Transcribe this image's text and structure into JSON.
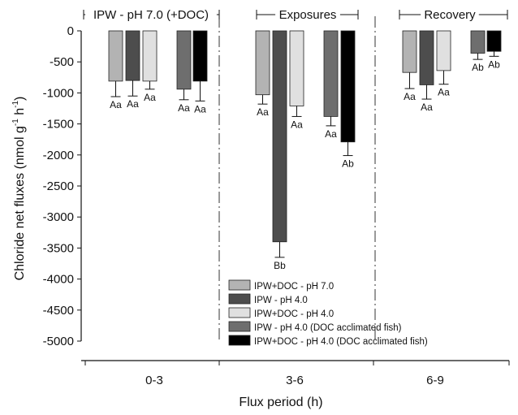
{
  "chart_data": {
    "type": "bar",
    "ylabel": "Chloride net fluxes (nmol g-1 h-1)",
    "ylabel_parts": {
      "main": "Chloride net fluxes (nmol g",
      "sup1": "-1",
      "mid": " h",
      "sup2": "-1",
      "end": ")"
    },
    "xlabel": "Flux period (h)",
    "ylim": [
      -5000,
      0
    ],
    "yticks": [
      0,
      -500,
      -1000,
      -1500,
      -2000,
      -2500,
      -3000,
      -3500,
      -4000,
      -4500,
      -5000
    ],
    "categories": [
      "0-3",
      "3-6",
      "6-9"
    ],
    "period_labels": [
      "IPW - pH 7.0 (+DOC)",
      "Exposures",
      "Recovery"
    ],
    "series": [
      {
        "name": "IPW+DOC - pH 7.0",
        "color": "#b3b3b3",
        "values": [
          -810,
          -1030,
          -670
        ],
        "errors": [
          250,
          150,
          260
        ],
        "labels": [
          "Aa",
          "Aa",
          "Aa"
        ]
      },
      {
        "name": "IPW - pH 4.0",
        "color": "#4d4d4d",
        "values": [
          -800,
          -3400,
          -870
        ],
        "errors": [
          250,
          250,
          230
        ],
        "labels": [
          "Aa",
          "Bb",
          "Aa"
        ]
      },
      {
        "name": "IPW+DOC - pH 4.0",
        "color": "#e0e0e0",
        "values": [
          -810,
          -1210,
          -640
        ],
        "errors": [
          130,
          170,
          220
        ],
        "labels": [
          "Aa",
          "Aa",
          "Aa"
        ]
      },
      {
        "name": "IPW - pH 4.0 (DOC acclimated fish)",
        "color": "#6e6e6e",
        "values": [
          -940,
          -1380,
          -360
        ],
        "errors": [
          170,
          150,
          100
        ],
        "labels": [
          "Aa",
          "Aa",
          "Ab"
        ]
      },
      {
        "name": "IPW+DOC - pH 4.0 (DOC acclimated fish)",
        "color": "#000000",
        "values": [
          -810,
          -1790,
          -330
        ],
        "errors": [
          320,
          220,
          80
        ],
        "labels": [
          "Aa",
          "Ab",
          "Ab"
        ]
      }
    ],
    "grid": false,
    "legend_position": "bottom-center"
  }
}
